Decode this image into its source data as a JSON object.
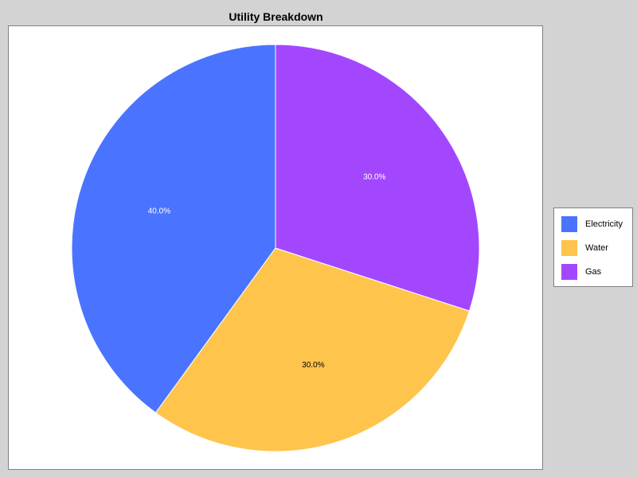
{
  "chart_data": {
    "type": "pie",
    "title": "Utility Breakdown",
    "categories": [
      "Electricity",
      "Water",
      "Gas"
    ],
    "values": [
      40.0,
      30.0,
      30.0
    ],
    "labels": [
      "40.0%",
      "30.0%",
      "30.0%"
    ],
    "colors": [
      "#4a74ff",
      "#ffc44c",
      "#a347ff"
    ],
    "legend_position": "right"
  }
}
